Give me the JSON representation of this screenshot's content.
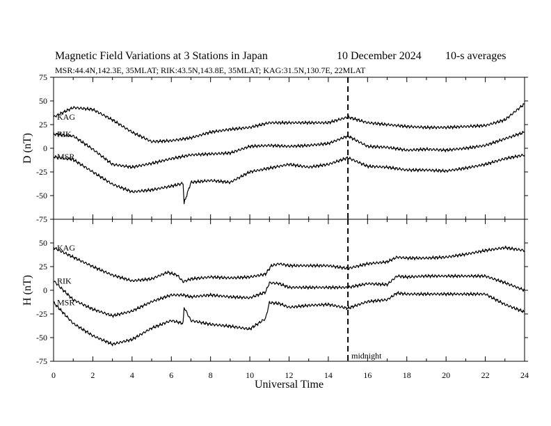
{
  "header": {
    "title": "Magnetic Field Variations at 3 Stations in Japan",
    "date": "10 December 2024",
    "averaging": "10-s averages",
    "subtitle": "MSR:44.4N,142.3E, 35MLAT;  RIK:43.5N,143.8E, 35MLAT;  KAG:31.5N,130.7E, 22MLAT"
  },
  "chart_data": [
    {
      "type": "line",
      "ylabel": "D (nT)",
      "ylim": [
        -75,
        75
      ],
      "yticks": [
        75,
        50,
        25,
        0,
        -25,
        -50,
        -75
      ],
      "xlim": [
        0,
        24
      ],
      "marker": {
        "x": 15,
        "label": ""
      },
      "series": [
        {
          "name": "KAG",
          "x": [
            0,
            1,
            2,
            3,
            4,
            5,
            6,
            7,
            8,
            9,
            10,
            11,
            12,
            13,
            14,
            15,
            16,
            17,
            18,
            19,
            20,
            21,
            22,
            23,
            24
          ],
          "values": [
            33,
            43,
            41,
            30,
            17,
            7,
            8,
            11,
            17,
            20,
            22,
            27,
            27,
            27,
            27,
            33,
            27,
            25,
            23,
            22,
            22,
            23,
            24,
            30,
            47
          ]
        },
        {
          "name": "RIK",
          "x": [
            0,
            1,
            2,
            3,
            4,
            5,
            6,
            7,
            8,
            9,
            10,
            11,
            12,
            13,
            14,
            15,
            16,
            17,
            18,
            19,
            20,
            21,
            22,
            23,
            24
          ],
          "values": [
            15,
            13,
            -1,
            -17,
            -20,
            -16,
            -11,
            -7,
            -6,
            -5,
            2,
            3,
            2,
            3,
            5,
            13,
            2,
            1,
            -2,
            -1,
            -2,
            0,
            3,
            10,
            17
          ]
        },
        {
          "name": "MSR",
          "x": [
            0,
            1,
            2,
            3,
            4,
            5,
            6,
            6.6,
            6.65,
            7,
            8,
            9,
            10,
            11,
            12,
            13,
            14,
            15,
            16,
            17,
            18,
            19,
            20,
            21,
            22,
            23,
            24
          ],
          "values": [
            -9,
            -12,
            -25,
            -38,
            -46,
            -44,
            -40,
            -37,
            -58,
            -36,
            -34,
            -36,
            -25,
            -21,
            -17,
            -20,
            -17,
            -10,
            -19,
            -20,
            -23,
            -23,
            -24,
            -21,
            -17,
            -11,
            -7
          ]
        }
      ]
    },
    {
      "type": "line",
      "ylabel": "H (nT)",
      "ylim": [
        -75,
        75
      ],
      "yticks": [
        50,
        25,
        0,
        -25,
        -50,
        -75
      ],
      "xlim": [
        0,
        24
      ],
      "xlabel": "Universal Time",
      "xticks": [
        0,
        2,
        4,
        6,
        8,
        10,
        12,
        14,
        16,
        18,
        20,
        22,
        24
      ],
      "marker": {
        "x": 15,
        "label": "midnight"
      },
      "series": [
        {
          "name": "KAG",
          "x": [
            0,
            1,
            2,
            3,
            4,
            5,
            5.8,
            6.3,
            6.6,
            7,
            8,
            9,
            10,
            10.8,
            11.1,
            11.5,
            12,
            13,
            14,
            15,
            16,
            17,
            17.5,
            18,
            19,
            20,
            21,
            22,
            23,
            24
          ],
          "values": [
            45,
            35,
            25,
            16,
            10,
            12,
            19,
            16,
            9,
            12,
            14,
            13,
            14,
            17,
            26,
            28,
            26,
            26,
            26,
            23,
            28,
            30,
            35,
            34,
            34,
            35,
            38,
            42,
            45,
            42
          ]
        },
        {
          "name": "RIK",
          "x": [
            0,
            1,
            2,
            3,
            4,
            5,
            6,
            6.6,
            7,
            8,
            9,
            10,
            10.8,
            11,
            11.5,
            12,
            13,
            14,
            15,
            16,
            17,
            17.5,
            18,
            19,
            20,
            21,
            22,
            23,
            24
          ],
          "values": [
            10,
            -10,
            -20,
            -27,
            -22,
            -12,
            -5,
            -5,
            -7,
            -5,
            -7,
            -8,
            -2,
            8,
            7,
            3,
            3,
            3,
            3,
            7,
            6,
            15,
            14,
            15,
            15,
            15,
            15,
            8,
            0
          ]
        },
        {
          "name": "MSR",
          "x": [
            0,
            1,
            2,
            3,
            4,
            5,
            6,
            6.6,
            6.65,
            7,
            8,
            9,
            10,
            10.8,
            11,
            11.5,
            12,
            13,
            14,
            15,
            16,
            17,
            17.5,
            18,
            19,
            20,
            21,
            22,
            23,
            24
          ],
          "values": [
            -13,
            -35,
            -48,
            -57,
            -52,
            -40,
            -32,
            -35,
            -18,
            -32,
            -36,
            -38,
            -41,
            -30,
            -13,
            -14,
            -18,
            -16,
            -15,
            -19,
            -12,
            -10,
            -3,
            -4,
            -4,
            -4,
            -4,
            -4,
            -15,
            -23
          ]
        }
      ]
    }
  ]
}
